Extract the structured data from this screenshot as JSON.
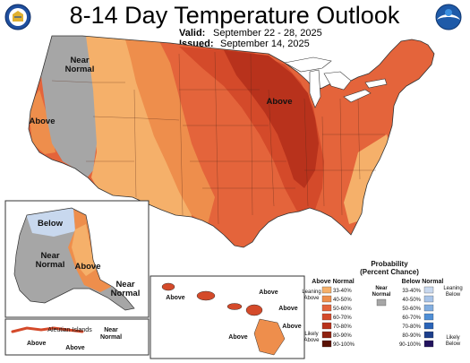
{
  "title": "8-14 Day Temperature Outlook",
  "valid_label": "Valid:",
  "valid_value": "September 22 - 28, 2025",
  "issued_label": "Issued:",
  "issued_value": "September 14, 2025",
  "region_labels": {
    "nw_near_normal": "Near\nNormal",
    "west_above": "Above",
    "midwest_above": "Above",
    "ak_below": "Below",
    "ak_near_normal": "Near\nNormal",
    "ak_above": "Above",
    "ak_panhandle_near_normal": "Near\nNormal",
    "hi_above_west": "Above",
    "hi_above_north": "Above",
    "hi_above_east": "Above",
    "hi_above_south": "Above",
    "aleutian_above": "Above",
    "aleutian_islands": "Aleutian Islands",
    "aleutian_near_normal": "Near\nNormal",
    "aleutian_above_east": "Above"
  },
  "legend": {
    "title": "Probability\n(Percent Chance)",
    "above_header": "Above Normal",
    "below_header": "Below Normal",
    "near_normal": "Near\nNormal",
    "leaning_above": "Leaning\nAbove",
    "likely_above": "Likely\nAbove",
    "leaning_below": "Leaning\nBelow",
    "likely_below": "Likely\nBelow",
    "above_bins": [
      "33-40%",
      "40-50%",
      "50-60%",
      "60-70%",
      "70-80%",
      "80-90%",
      "90-100%"
    ],
    "below_bins": [
      "33-40%",
      "40-50%",
      "50-60%",
      "60-70%",
      "70-80%",
      "80-90%",
      "90-100%"
    ],
    "above_colors": [
      "#f5b06a",
      "#ee8e4c",
      "#e4643b",
      "#d44a2a",
      "#b8321c",
      "#8f2210",
      "#5a1205"
    ],
    "below_colors": [
      "#c8d8ee",
      "#a8c4e8",
      "#82aee0",
      "#4f8fd6",
      "#2a64b8",
      "#1d3f8c",
      "#22135e"
    ],
    "near_normal_color": "#a6a6a6"
  },
  "colors": {
    "above_33_40": "#f5b06a",
    "above_40_50": "#ee8e4c",
    "above_50_60": "#e4643b",
    "above_60_70": "#d44a2a",
    "above_70_80": "#b8321c",
    "near_normal": "#a6a6a6",
    "below_33_40": "#c8d8ee",
    "water": "#ffffff",
    "border": "#333333"
  },
  "logos": {
    "left": "doc-seal-icon",
    "right": "noaa-logo-icon"
  }
}
